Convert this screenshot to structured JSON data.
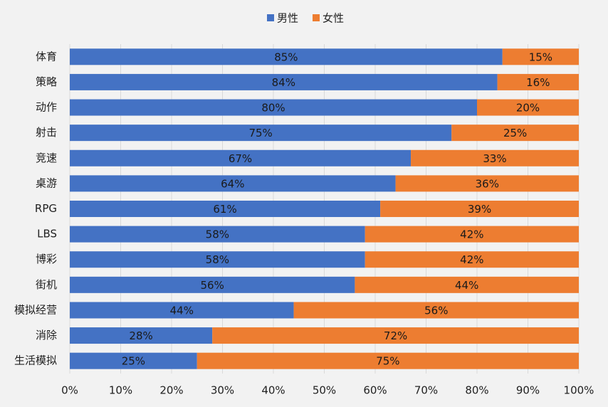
{
  "chart_data": {
    "type": "bar",
    "orientation": "horizontal",
    "stacked": true,
    "grid": true,
    "legend": "top",
    "categories": [
      "体育",
      "策略",
      "动作",
      "射击",
      "竞速",
      "桌游",
      "RPG",
      "LBS",
      "博彩",
      "街机",
      "模拟经营",
      "消除",
      "生活模拟"
    ],
    "series": [
      {
        "name": "男性",
        "color": "#4472c4",
        "values": [
          85,
          84,
          80,
          75,
          67,
          64,
          61,
          58,
          58,
          56,
          44,
          28,
          25
        ],
        "value_labels": [
          "85%",
          "84%",
          "80%",
          "75%",
          "67%",
          "64%",
          "61%",
          "58%",
          "58%",
          "56%",
          "44%",
          "28%",
          "25%"
        ]
      },
      {
        "name": "女性",
        "color": "#ed7d31",
        "values": [
          15,
          16,
          20,
          25,
          33,
          36,
          39,
          42,
          42,
          44,
          56,
          72,
          75
        ],
        "value_labels": [
          "15%",
          "16%",
          "20%",
          "25%",
          "33%",
          "36%",
          "39%",
          "42%",
          "42%",
          "44%",
          "56%",
          "72%",
          "75%"
        ]
      }
    ],
    "xlim": [
      0,
      100
    ],
    "xticks": [
      {
        "value": 0,
        "label": "0%"
      },
      {
        "value": 10,
        "label": "10%"
      },
      {
        "value": 20,
        "label": "20%"
      },
      {
        "value": 30,
        "label": "30%"
      },
      {
        "value": 40,
        "label": "40%"
      },
      {
        "value": 50,
        "label": "50%"
      },
      {
        "value": 60,
        "label": "60%"
      },
      {
        "value": 70,
        "label": "70%"
      },
      {
        "value": 80,
        "label": "80%"
      },
      {
        "value": 90,
        "label": "90%"
      },
      {
        "value": 100,
        "label": "100%"
      }
    ]
  }
}
